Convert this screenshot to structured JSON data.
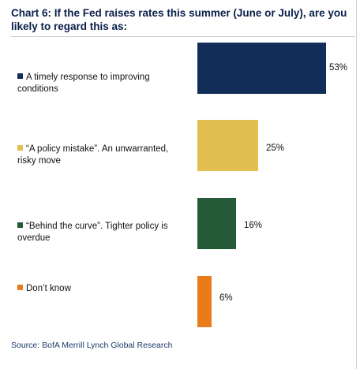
{
  "title": "Chart 6: If the Fed raises rates this summer (June or July), are you likely to regard this as:",
  "source": "Source: BofA Merrill Lynch Global Research",
  "chart_data": {
    "type": "bar",
    "orientation": "horizontal",
    "categories": [
      "A timely response to improving conditions",
      "“A policy mistake”. An unwarranted, risky move",
      "“Behind the curve”. Tighter policy is overdue",
      "Don’t know"
    ],
    "values": [
      53,
      25,
      16,
      6
    ],
    "value_labels": [
      "53%",
      "25%",
      "16%",
      "6%"
    ],
    "colors": [
      "#132d59",
      "#e2bd50",
      "#245a37",
      "#ea7b1b"
    ],
    "xlim": [
      0,
      53
    ],
    "grid": false,
    "legend": "none"
  }
}
